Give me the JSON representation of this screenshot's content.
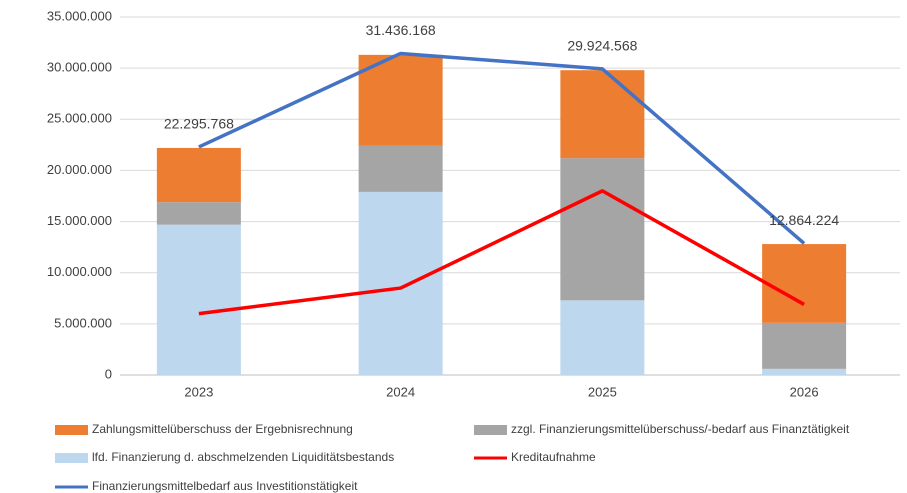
{
  "chart_data": {
    "type": "bar",
    "stacked": true,
    "categories": [
      "2023",
      "2024",
      "2025",
      "2026"
    ],
    "ylim": [
      0,
      35000000
    ],
    "yticks": [
      0,
      {
        "value": 5000000,
        "label": "5.000.000"
      },
      {
        "value": 10000000,
        "label": "10.000.000"
      },
      {
        "value": 15000000,
        "label": "15.000.000"
      },
      {
        "value": 20000000,
        "label": "20.000.000"
      },
      {
        "value": 25000000,
        "label": "25.000.000"
      },
      {
        "value": 30000000,
        "label": "30.000.000"
      },
      {
        "value": 35000000,
        "label": "35.000.000"
      }
    ],
    "grid": true,
    "legend": "bottom",
    "series": [
      {
        "name": "lfd. Finanzierung d. abschmelzenden Liquiditätsbestands",
        "type": "bar",
        "color": "#BDD7EE",
        "values": [
          14700000,
          17900000,
          7300000,
          600000
        ]
      },
      {
        "name": "zzgl. Finanzierungsmittelüberschuss/-bedarf aus Finanztätigkeit",
        "type": "bar",
        "color": "#A5A5A5",
        "values": [
          2200000,
          4500000,
          13900000,
          4500000
        ]
      },
      {
        "name": "Zahlungsmittelüberschuss der Ergebnisrechnung",
        "type": "bar",
        "color": "#ED7D31",
        "values": [
          5300000,
          8900000,
          8600000,
          7700000
        ]
      },
      {
        "name": "Kreditaufnahme",
        "type": "line",
        "color": "#FF0000",
        "values": [
          6000000,
          8500000,
          18000000,
          6900000
        ]
      },
      {
        "name": "Finanzierungsmittelbedarf aus Investitionstätigkeit",
        "type": "line",
        "color": "#4472C4",
        "values": [
          22295768,
          31436168,
          29924568,
          12864224
        ],
        "value_labels": [
          "22.295.768",
          "31.436.168",
          "29.924.568",
          "12.864.224"
        ]
      }
    ]
  }
}
